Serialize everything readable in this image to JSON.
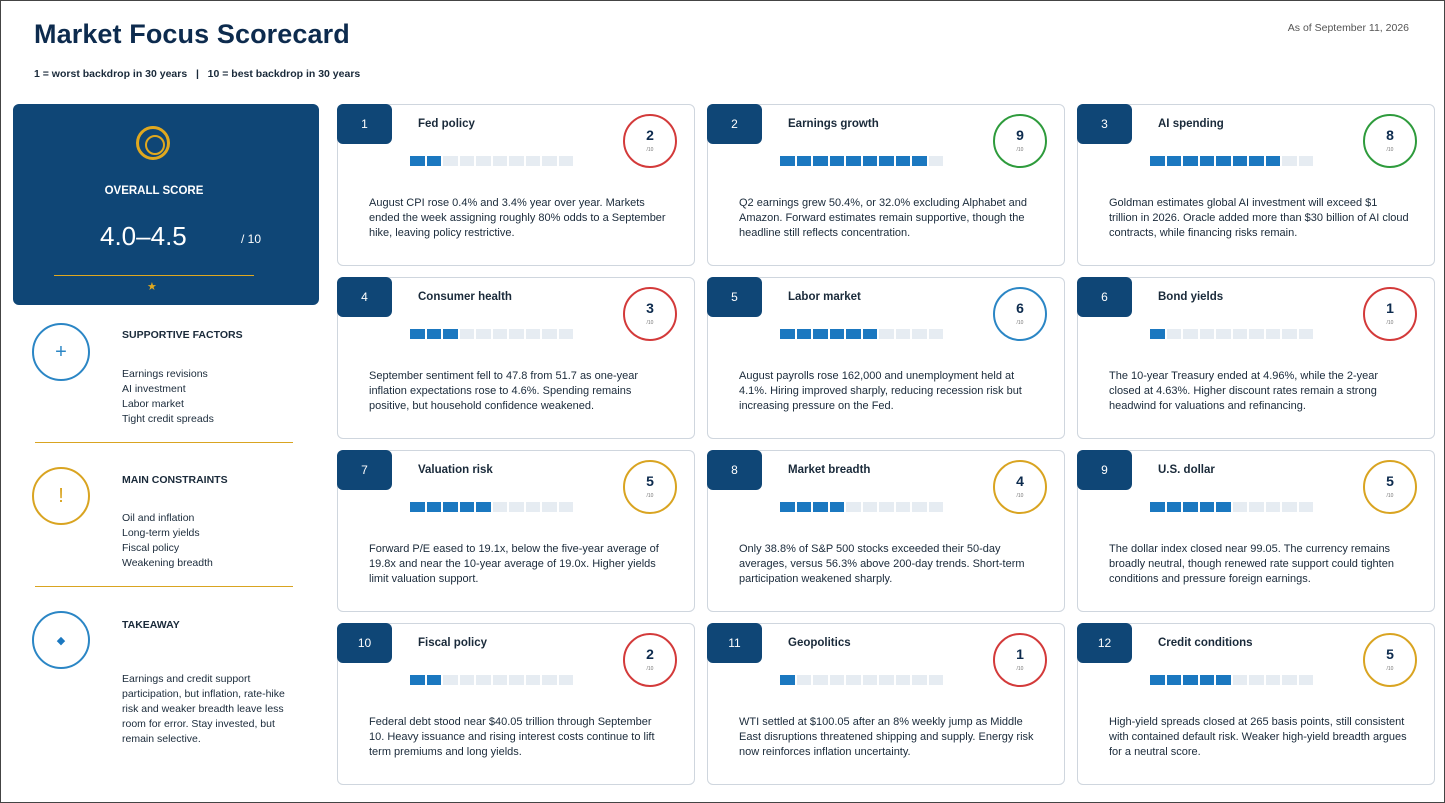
{
  "header": {
    "title": "Market Focus Scorecard",
    "subtitle": "1 = worst backdrop in 30 years   |   10 = best backdrop in 30 years",
    "as_of": "As of September 11, 2026"
  },
  "overall": {
    "label": "OVERALL SCORE",
    "score": "4.0–4.5",
    "max": "/ 10",
    "star": "★"
  },
  "supportive": {
    "icon": "+",
    "title": "SUPPORTIVE FACTORS",
    "items": [
      "Earnings revisions",
      "AI investment",
      "Labor market",
      "Tight credit spreads"
    ]
  },
  "constraints": {
    "icon": "!",
    "title": "MAIN CONSTRAINTS",
    "items": [
      "Oil and inflation",
      "Long-term yields",
      "Fiscal policy",
      "Weakening breadth"
    ]
  },
  "takeaway": {
    "icon": "◆",
    "title": "TAKEAWAY",
    "text": "Earnings and credit support participation, but inflation, rate-hike risk and weaker breadth leave less room for error. Stay invested, but remain selective."
  },
  "colors": {
    "navy": "#0f4676",
    "bar_on": "#1b78c0",
    "bar_off": "#e6ecf2",
    "red": "#d33a3a",
    "green": "#2e9b3c",
    "blue": "#2b86c5",
    "gold": "#d9a421"
  },
  "cards": [
    {
      "num": "1",
      "title": "Fed policy",
      "score": 2,
      "denom": "/10",
      "ring": "red",
      "text": "August CPI rose 0.4% and 3.4% year over year. Markets ended the week assigning roughly 80% odds to a September hike, leaving policy restrictive."
    },
    {
      "num": "2",
      "title": "Earnings growth",
      "score": 9,
      "denom": "/10",
      "ring": "green",
      "text": "Q2 earnings grew 50.4%, or 32.0% excluding Alphabet and Amazon. Forward estimates remain supportive, though the headline still reflects concentration."
    },
    {
      "num": "3",
      "title": "AI spending",
      "score": 8,
      "denom": "/10",
      "ring": "green",
      "text": "Goldman estimates global AI investment will exceed $1 trillion in 2026. Oracle added more than $30 billion of AI cloud contracts, while financing risks remain."
    },
    {
      "num": "4",
      "title": "Consumer health",
      "score": 3,
      "denom": "/10",
      "ring": "red",
      "text": "September sentiment fell to 47.8 from 51.7 as one-year inflation expectations rose to 4.6%. Spending remains positive, but household confidence weakened."
    },
    {
      "num": "5",
      "title": "Labor market",
      "score": 6,
      "denom": "/10",
      "ring": "blue",
      "text": "August payrolls rose 162,000 and unemployment held at 4.1%. Hiring improved sharply, reducing recession risk but increasing pressure on the Fed."
    },
    {
      "num": "6",
      "title": "Bond yields",
      "score": 1,
      "denom": "/10",
      "ring": "red",
      "text": "The 10-year Treasury ended at 4.96%, while the 2-year closed at 4.63%. Higher discount rates remain a strong headwind for valuations and refinancing."
    },
    {
      "num": "7",
      "title": "Valuation risk",
      "score": 5,
      "denom": "/10",
      "ring": "gold",
      "text": "Forward P/E eased to 19.1x, below the five-year average of 19.8x and near the 10-year average of 19.0x. Higher yields limit valuation support."
    },
    {
      "num": "8",
      "title": "Market breadth",
      "score": 4,
      "denom": "/10",
      "ring": "gold",
      "text": "Only 38.8% of S&P 500 stocks exceeded their 50-day averages, versus 56.3% above 200-day trends. Short-term participation weakened sharply."
    },
    {
      "num": "9",
      "title": "U.S. dollar",
      "score": 5,
      "denom": "/10",
      "ring": "gold",
      "text": "The dollar index closed near 99.05. The currency remains broadly neutral, though renewed rate support could tighten conditions and pressure foreign earnings."
    },
    {
      "num": "10",
      "title": "Fiscal policy",
      "score": 2,
      "denom": "/10",
      "ring": "red",
      "text": "Federal debt stood near $40.05 trillion through September 10. Heavy issuance and rising interest costs continue to lift term premiums and long yields."
    },
    {
      "num": "11",
      "title": "Geopolitics",
      "score": 1,
      "denom": "/10",
      "ring": "red",
      "text": "WTI settled at $100.05 after an 8% weekly jump as Middle East disruptions threatened shipping and supply. Energy risk now reinforces inflation uncertainty."
    },
    {
      "num": "12",
      "title": "Credit conditions",
      "score": 5,
      "denom": "/10",
      "ring": "gold",
      "text": "High-yield spreads closed at 265 basis points, still consistent with contained default risk. Weaker high-yield breadth argues for a neutral score."
    }
  ]
}
